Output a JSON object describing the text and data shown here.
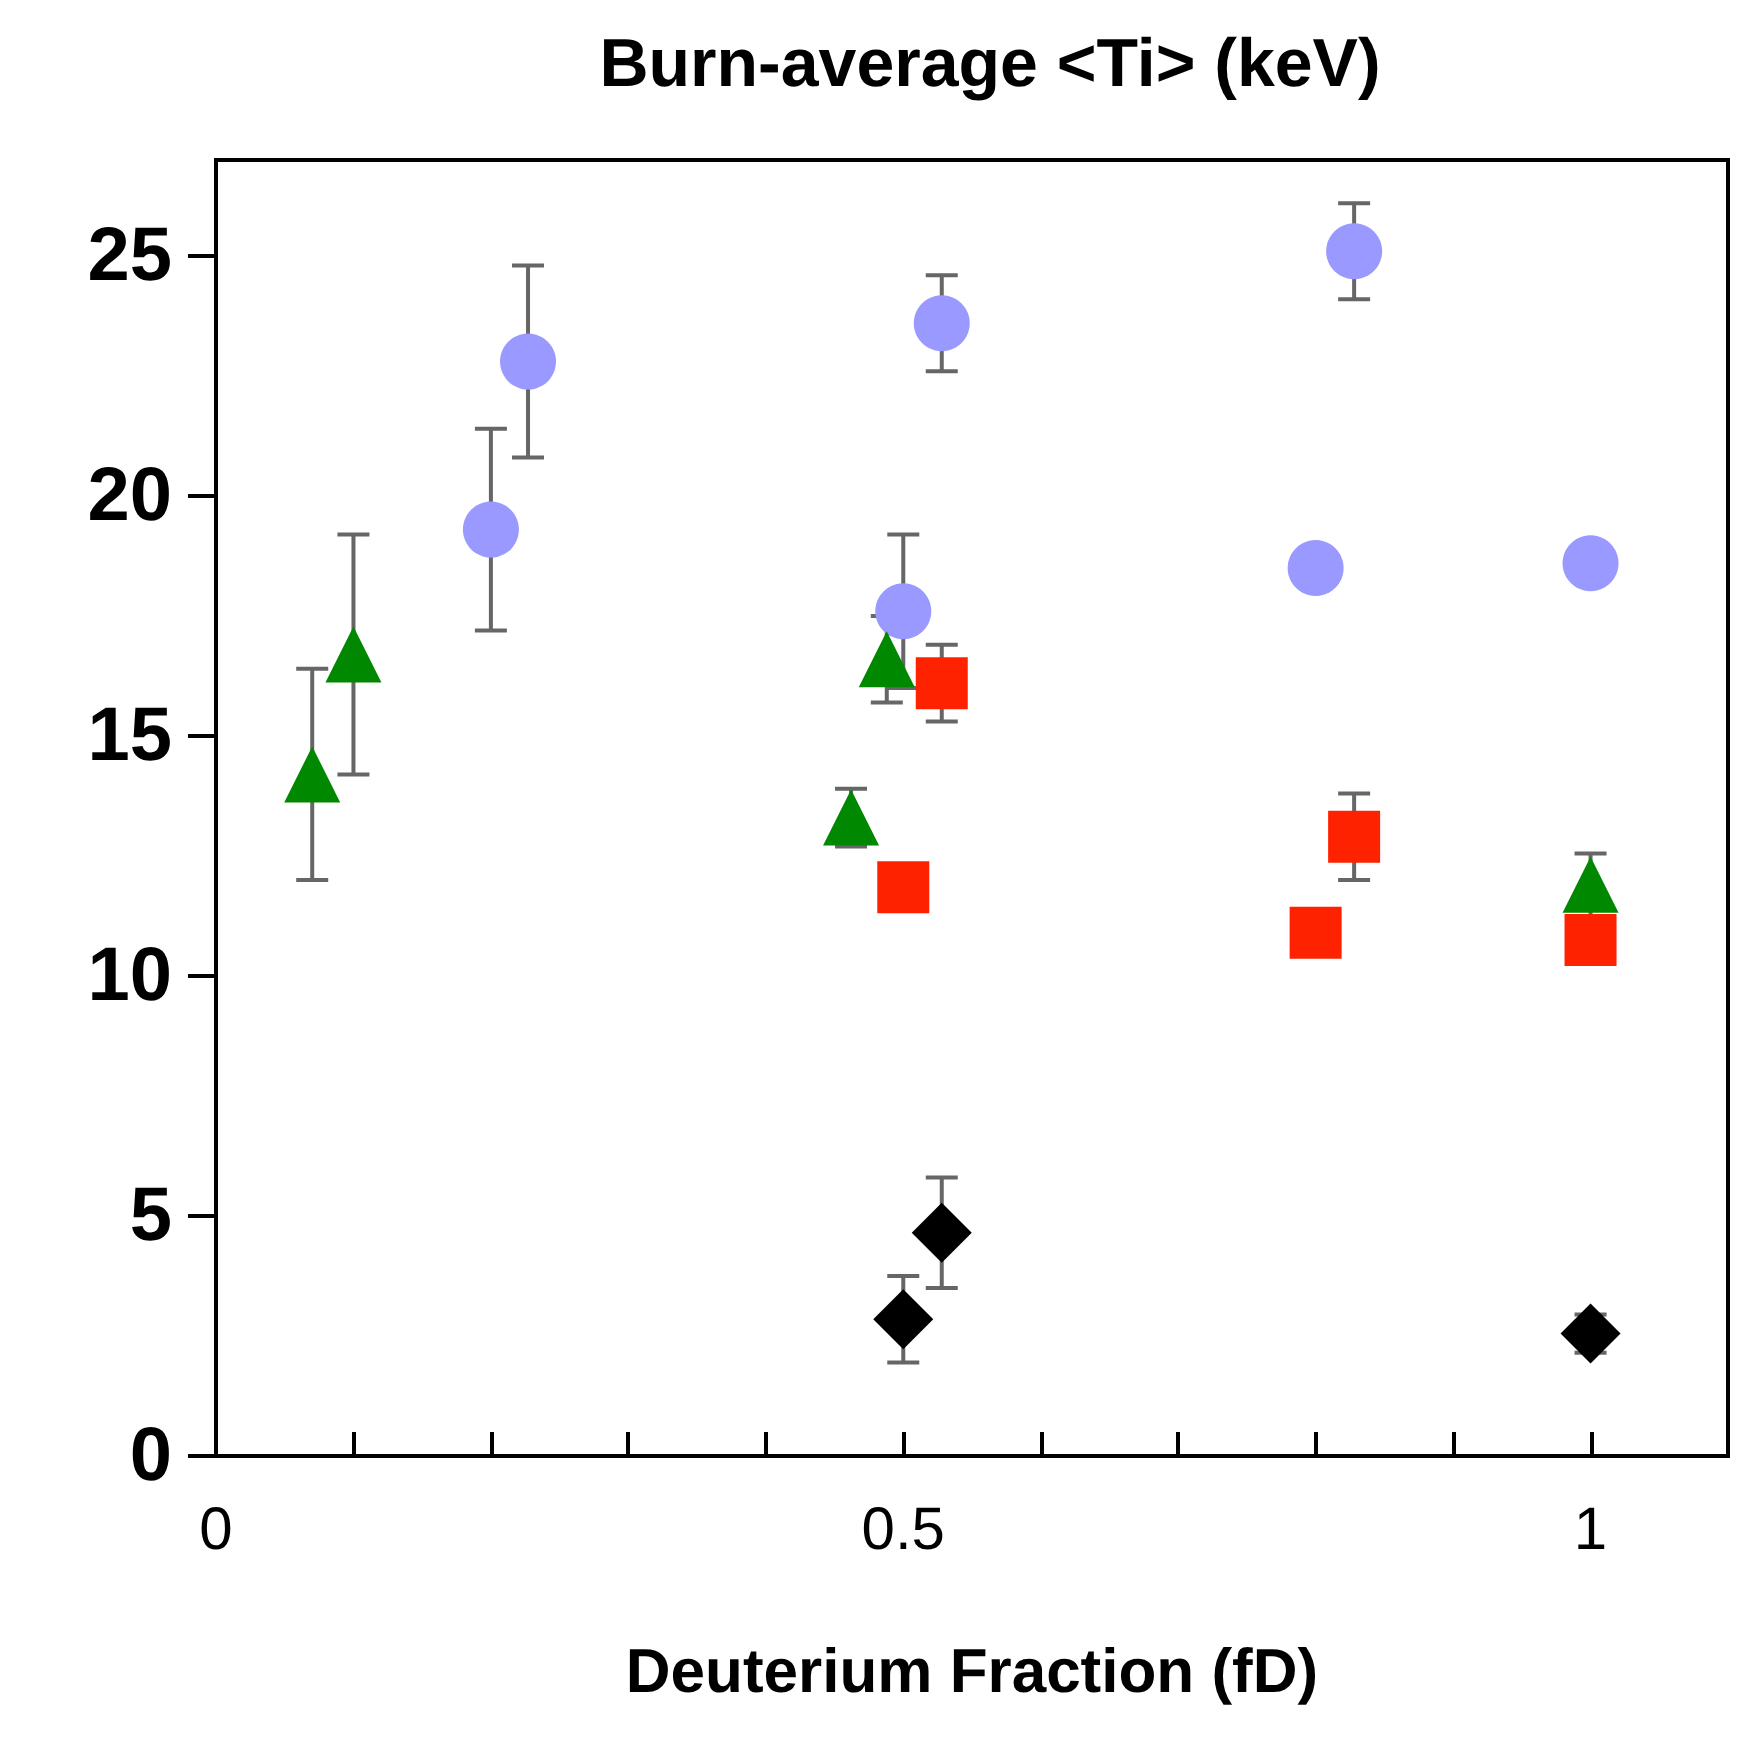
{
  "chart_data": {
    "type": "scatter",
    "title": "Burn-average <Ti> (keV)",
    "xlabel": "Deuterium Fraction (fD)",
    "xlim": [
      0,
      1.1
    ],
    "ylim": [
      0,
      27
    ],
    "xticks": [
      0,
      {
        "value": 0.1,
        "label": null
      },
      {
        "value": 0.2,
        "label": null
      },
      {
        "value": 0.3,
        "label": null
      },
      {
        "value": 0.4,
        "label": null
      },
      0.5,
      {
        "value": 0.6,
        "label": null
      },
      {
        "value": 0.7,
        "label": null
      },
      {
        "value": 0.8,
        "label": null
      },
      {
        "value": 0.9,
        "label": null
      },
      1
    ],
    "yticks": [
      0,
      5,
      10,
      15,
      20,
      25
    ],
    "grid": false,
    "series": [
      {
        "color": "#9999ff",
        "marker": "circle",
        "x": [
          0.2,
          0.5,
          0.8,
          1.0
        ],
        "values": [
          19.3,
          17.6,
          18.5,
          18.6
        ],
        "errors": [
          2.1,
          1.6,
          null,
          null
        ]
      },
      {
        "color": "#9999ff",
        "marker": "circle",
        "x": [
          0.227,
          0.528,
          0.828
        ],
        "values": [
          22.8,
          23.6,
          25.1
        ],
        "errors": [
          2,
          1,
          1
        ]
      },
      {
        "color": "#ff2200",
        "marker": "square",
        "x": [
          0.5,
          0.8,
          1.0
        ],
        "values": [
          11.85,
          10.9,
          10.75
        ],
        "errors": [
          null,
          null,
          null
        ]
      },
      {
        "color": "#ff2200",
        "marker": "square",
        "x": [
          0.528,
          0.828
        ],
        "values": [
          16.1,
          12.9
        ],
        "errors": [
          0.8,
          0.9
        ]
      },
      {
        "color": "#008800",
        "marker": "triangle",
        "x": [
          0.07,
          0.462,
          1.0
        ],
        "values": [
          14.2,
          13.3,
          11.9
        ],
        "errors": [
          2.2,
          0.6,
          0.65
        ]
      },
      {
        "color": "#008800",
        "marker": "triangle",
        "x": [
          0.1,
          0.488
        ],
        "values": [
          16.7,
          16.6
        ],
        "errors": [
          2.5,
          0.9
        ]
      },
      {
        "color": "#000000",
        "marker": "diamond",
        "x": [
          0.5,
          1.0
        ],
        "values": [
          2.85,
          2.55
        ],
        "errors": [
          0.9,
          0.4
        ]
      },
      {
        "color": "#000000",
        "marker": "diamond",
        "x": [
          0.528
        ],
        "values": [
          4.65
        ],
        "errors": [
          1.15
        ]
      }
    ]
  }
}
